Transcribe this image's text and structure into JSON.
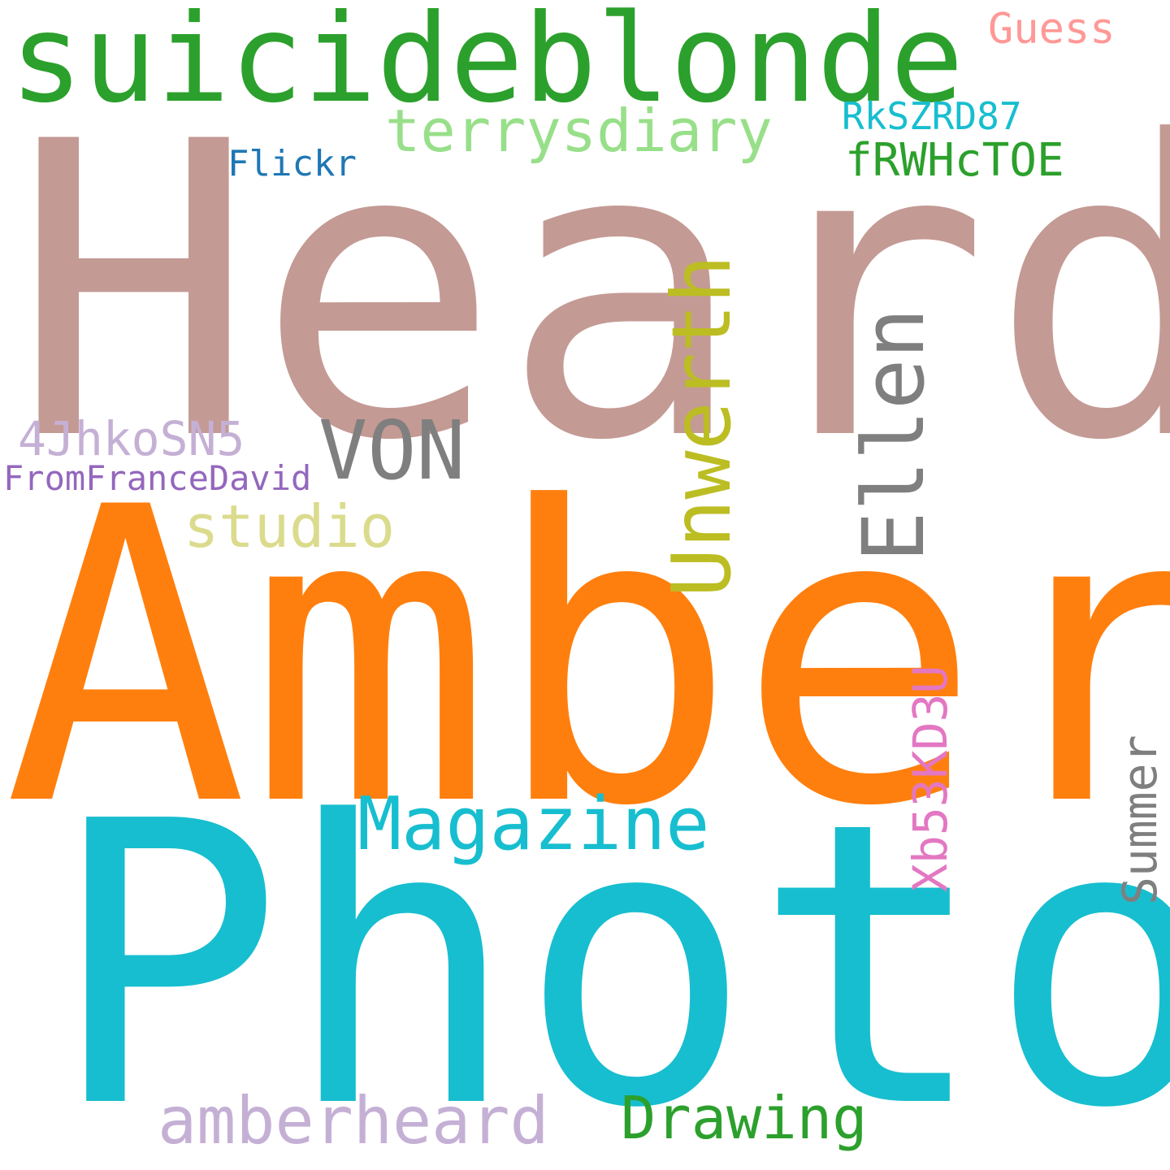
{
  "words": {
    "heard": {
      "text": "Heard",
      "color": "#c49a94"
    },
    "amber": {
      "text": "Amber",
      "color": "#ff7f0e"
    },
    "photo": {
      "text": "Photo",
      "color": "#17becf"
    },
    "suicide": {
      "text": "suicideblonde",
      "color": "#2ca02c"
    },
    "terrys": {
      "text": "terrysdiary",
      "color": "#98df8a"
    },
    "von": {
      "text": "VON",
      "color": "#7f7f7f"
    },
    "studio": {
      "text": "studio",
      "color": "#dbdb8d"
    },
    "magazine": {
      "text": "Magazine",
      "color": "#17becf"
    },
    "amberheard": {
      "text": "amberheard",
      "color": "#c5b0d5"
    },
    "drawing": {
      "text": "Drawing",
      "color": "#2ca02c"
    },
    "guess": {
      "text": "Guess",
      "color": "#ff9896"
    },
    "rks": {
      "text": "RkSZRD87",
      "color": "#17becf"
    },
    "frwh": {
      "text": "fRWHcTOE",
      "color": "#2ca02c"
    },
    "flickr": {
      "text": "Flickr",
      "color": "#1f77b4"
    },
    "jh": {
      "text": "4JhkoSN5",
      "color": "#c5b0d5"
    },
    "ffd": {
      "text": "FromFranceDavid",
      "color": "#9467bd"
    },
    "unwerth": {
      "text": "Unwerth",
      "color": "#bcbd22"
    },
    "ellen": {
      "text": "Ellen",
      "color": "#7f7f7f"
    },
    "xb5": {
      "text": "Xb53KD3U",
      "color": "#e377c2"
    },
    "summer": {
      "text": "Summer",
      "color": "#7f7f7f"
    }
  }
}
